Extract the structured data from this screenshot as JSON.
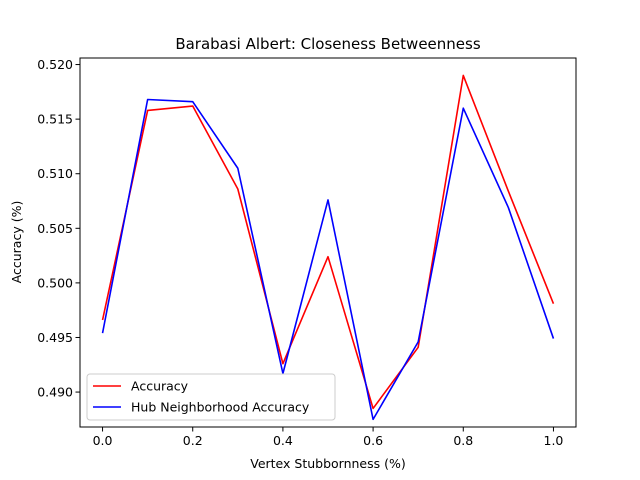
{
  "chart_data": {
    "type": "line",
    "title": "Barabasi Albert: Closeness Betweenness",
    "xlabel": "Vertex Stubbornness (%)",
    "ylabel": "Accuracy (%)",
    "xlim": [
      -0.05,
      1.05
    ],
    "ylim": [
      0.4868,
      0.5206
    ],
    "xticks": [
      0.0,
      0.2,
      0.4,
      0.6,
      0.8,
      1.0
    ],
    "xtick_labels": [
      "0.0",
      "0.2",
      "0.4",
      "0.6",
      "0.8",
      "1.0"
    ],
    "yticks": [
      0.49,
      0.495,
      0.5,
      0.505,
      0.51,
      0.515,
      0.52
    ],
    "ytick_labels": [
      "0.490",
      "0.495",
      "0.500",
      "0.505",
      "0.510",
      "0.515",
      "0.520"
    ],
    "grid": false,
    "legend_position": "lower-left",
    "x": [
      0.0,
      0.1,
      0.2,
      0.3,
      0.4,
      0.5,
      0.6,
      0.7,
      0.8,
      0.9,
      1.0
    ],
    "series": [
      {
        "name": "Accuracy",
        "color": "#ff0000",
        "values": [
          0.4966,
          0.5158,
          0.5162,
          0.5086,
          0.4926,
          0.5024,
          0.4885,
          0.4941,
          0.519,
          0.5084,
          0.4981
        ]
      },
      {
        "name": "Hub Neighborhood Accuracy",
        "color": "#0000ff",
        "values": [
          0.4954,
          0.5168,
          0.5166,
          0.5105,
          0.4917,
          0.5076,
          0.4875,
          0.4946,
          0.516,
          0.5069,
          0.4949
        ]
      }
    ]
  }
}
